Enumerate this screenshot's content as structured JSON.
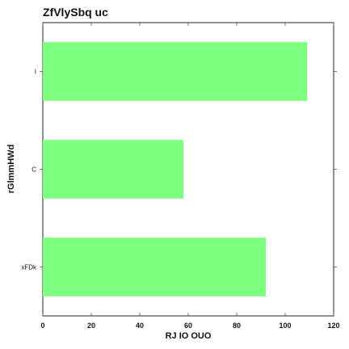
{
  "chart_data": {
    "type": "bar",
    "orientation": "horizontal",
    "title": "ZfVlySbq uc",
    "xlabel": "RJ IO OUO",
    "ylabel": "rGlmmHWd",
    "categories": [
      "xFDk",
      "C",
      "I"
    ],
    "values": [
      92,
      58,
      109
    ],
    "xlim": [
      0,
      120
    ],
    "xticks": [
      0,
      20,
      40,
      60,
      80,
      100,
      120
    ],
    "grid": false,
    "bar_color": "#7fff7f"
  }
}
